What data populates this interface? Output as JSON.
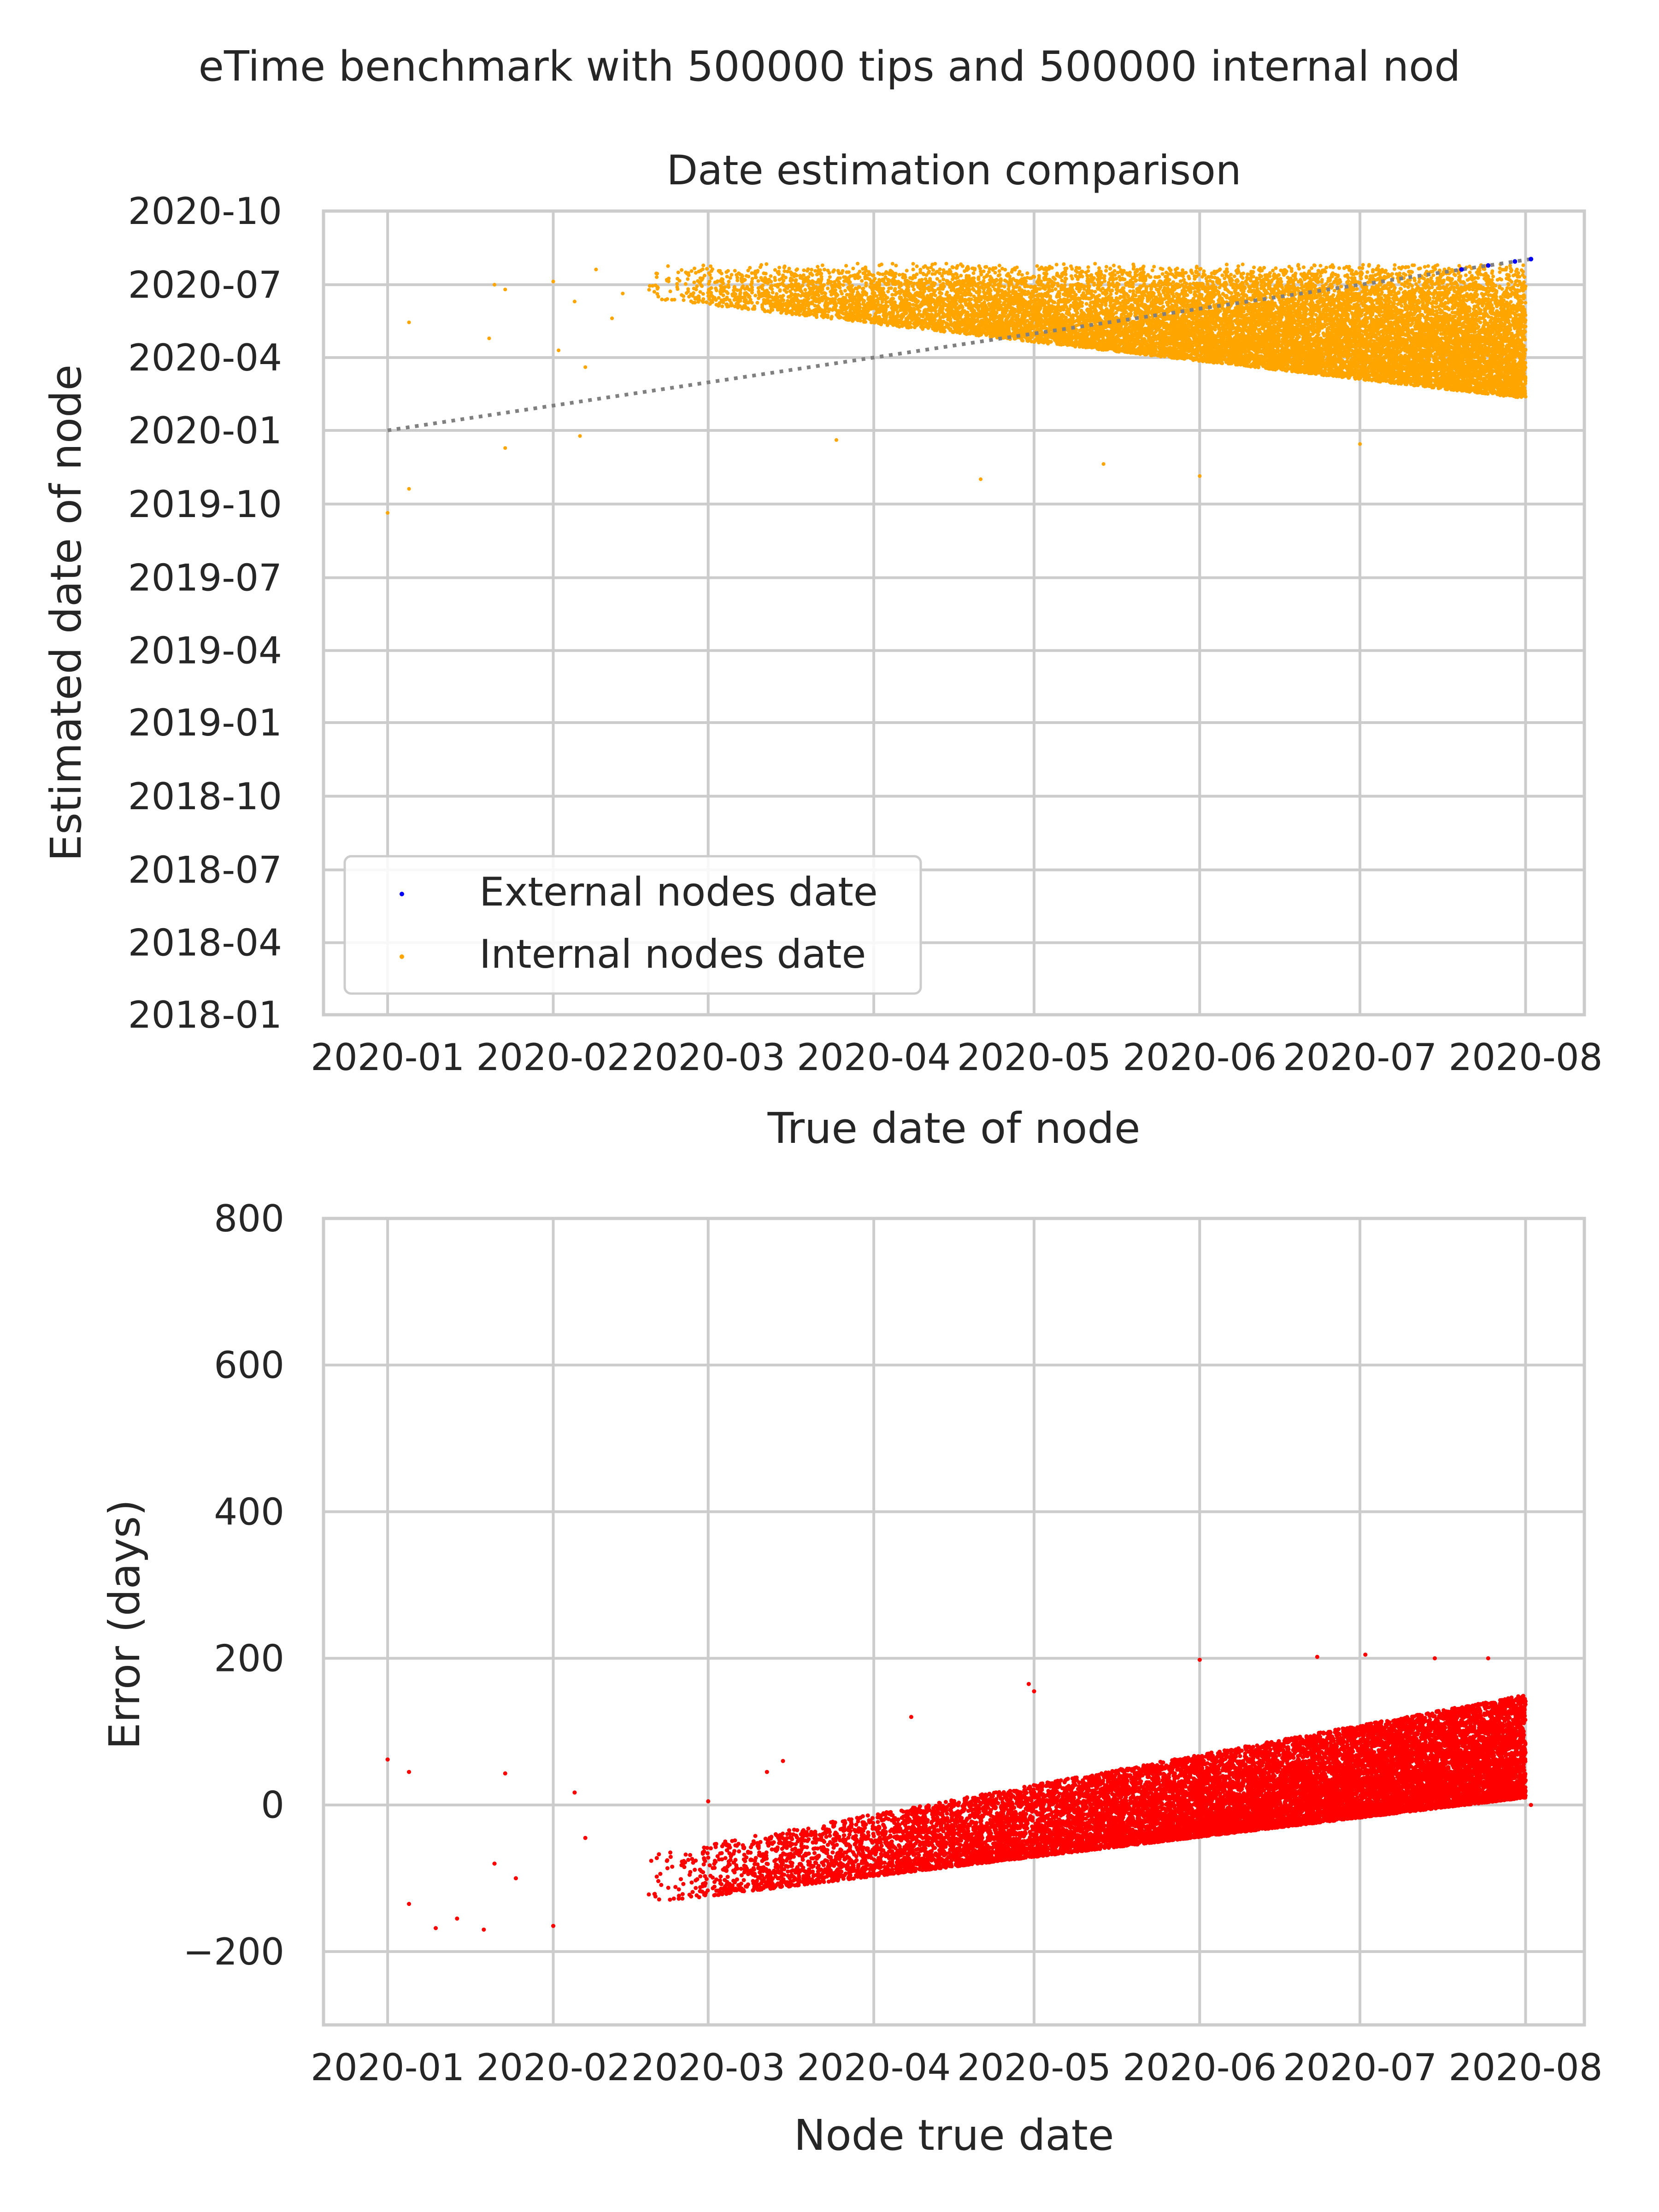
{
  "figure": {
    "suptitle": "eTime benchmark with 500000 tips and 500000 internal nod"
  },
  "chart_data": [
    {
      "type": "scatter",
      "title": "Date estimation comparison",
      "xlabel": "True date of node",
      "ylabel": "Estimated date of node",
      "x_ticks": [
        "2020-01",
        "2020-02",
        "2020-03",
        "2020-04",
        "2020-05",
        "2020-06",
        "2020-07",
        "2020-08"
      ],
      "y_ticks": [
        "2018-01",
        "2018-04",
        "2018-07",
        "2018-10",
        "2019-01",
        "2019-04",
        "2019-07",
        "2019-10",
        "2020-01",
        "2020-04",
        "2020-07",
        "2020-10"
      ],
      "xlim": [
        "2019-12-20",
        "2020-08-12"
      ],
      "ylim": [
        "2018-01-01",
        "2020-10-01"
      ],
      "grid": true,
      "legend_position": "lower-left",
      "series": [
        {
          "name": "External nodes date",
          "color": "#0000ff",
          "description_points": [
            [
              "2020-07-20",
              "2020-07-20"
            ],
            [
              "2020-07-25",
              "2020-07-25"
            ],
            [
              "2020-07-30",
              "2020-07-30"
            ],
            [
              "2020-08-02",
              "2020-08-02"
            ]
          ]
        },
        {
          "name": "Internal nodes date",
          "color": "#ffa500",
          "dense_region": {
            "x_range": [
              "2020-02-18",
              "2020-08-01"
            ],
            "y_upper": "2020-07-28",
            "y_lower_at_start": "2020-06-15",
            "y_lower_at_end": "2020-02-10"
          },
          "outliers": [
            [
              "2020-01-01",
              "2019-09-20"
            ],
            [
              "2020-01-05",
              "2020-05-15"
            ],
            [
              "2020-01-05",
              "2019-10-20"
            ],
            [
              "2020-01-21",
              "2020-07-01"
            ],
            [
              "2020-01-23",
              "2020-06-25"
            ],
            [
              "2020-02-01",
              "2020-07-05"
            ],
            [
              "2020-02-05",
              "2020-06-10"
            ],
            [
              "2020-02-09",
              "2020-07-20"
            ],
            [
              "2020-02-12",
              "2020-05-20"
            ],
            [
              "2020-02-14",
              "2020-06-20"
            ],
            [
              "2020-01-20",
              "2020-04-25"
            ],
            [
              "2020-01-23",
              "2019-12-10"
            ],
            [
              "2020-02-02",
              "2020-04-10"
            ],
            [
              "2020-02-07",
              "2020-03-20"
            ],
            [
              "2020-02-06",
              "2019-12-25"
            ],
            [
              "2020-03-25",
              "2019-12-20"
            ],
            [
              "2020-04-21",
              "2019-11-01"
            ],
            [
              "2020-05-14",
              "2019-11-20"
            ],
            [
              "2020-06-01",
              "2019-11-05"
            ],
            [
              "2020-07-01",
              "2019-12-15"
            ]
          ]
        }
      ],
      "reference_line": {
        "style": "dotted",
        "color": "#808080",
        "from": [
          "2020-01-01",
          "2020-01-01"
        ],
        "to": [
          "2020-08-02",
          "2020-08-02"
        ]
      }
    },
    {
      "type": "scatter",
      "title": "",
      "xlabel": "Node true date",
      "ylabel": "Error (days)",
      "x_ticks": [
        "2020-01",
        "2020-02",
        "2020-03",
        "2020-04",
        "2020-05",
        "2020-06",
        "2020-07",
        "2020-08"
      ],
      "y_ticks": [
        "−200",
        "0",
        "200",
        "400",
        "600",
        "800"
      ],
      "xlim": [
        "2019-12-20",
        "2020-08-12"
      ],
      "ylim": [
        -300,
        800
      ],
      "grid": true,
      "series": [
        {
          "name": "",
          "color": "#ff0000",
          "dense_region": {
            "x_range": [
              "2020-02-18",
              "2020-08-01"
            ],
            "y_lower_at_start": -135,
            "y_lower_at_end": 10,
            "y_upper_at_start": -70,
            "y_upper_at_end": 150
          },
          "outliers": [
            [
              "2020-01-01",
              62
            ],
            [
              "2020-01-05",
              45
            ],
            [
              "2020-01-05",
              -135
            ],
            [
              "2020-01-10",
              -168
            ],
            [
              "2020-01-14",
              -155
            ],
            [
              "2020-01-19",
              -170
            ],
            [
              "2020-01-23",
              43
            ],
            [
              "2020-01-21",
              -80
            ],
            [
              "2020-01-25",
              -100
            ],
            [
              "2020-02-05",
              17
            ],
            [
              "2020-02-07",
              -45
            ],
            [
              "2020-02-01",
              -165
            ],
            [
              "2020-03-01",
              5
            ],
            [
              "2020-03-12",
              45
            ],
            [
              "2020-03-15",
              60
            ],
            [
              "2020-04-08",
              120
            ],
            [
              "2020-04-30",
              165
            ],
            [
              "2020-05-01",
              155
            ],
            [
              "2020-06-01",
              198
            ],
            [
              "2020-06-23",
              202
            ],
            [
              "2020-07-02",
              205
            ],
            [
              "2020-07-15",
              200
            ],
            [
              "2020-07-25",
              200
            ],
            [
              "2020-08-02",
              0
            ]
          ]
        }
      ]
    }
  ]
}
